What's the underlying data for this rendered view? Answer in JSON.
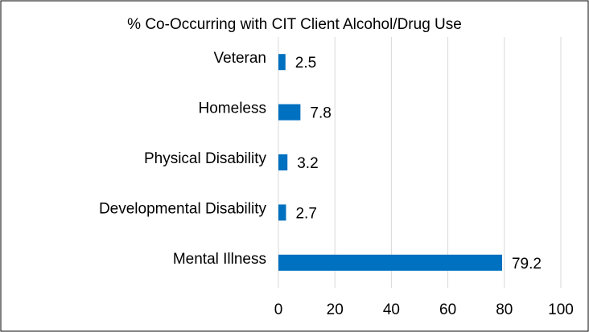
{
  "chart_data": {
    "type": "bar",
    "orientation": "horizontal",
    "title": "% Co-Occurring with CIT Client Alcohol/Drug Use",
    "categories": [
      "Veteran",
      "Homeless",
      "Physical Disability",
      "Developmental Disability",
      "Mental Illness"
    ],
    "values": [
      2.5,
      7.8,
      3.2,
      2.7,
      79.2
    ],
    "color": "#0070c0",
    "xlim": [
      0,
      100
    ],
    "xticks": [
      0,
      20,
      40,
      60,
      80,
      100
    ],
    "grid": true
  }
}
